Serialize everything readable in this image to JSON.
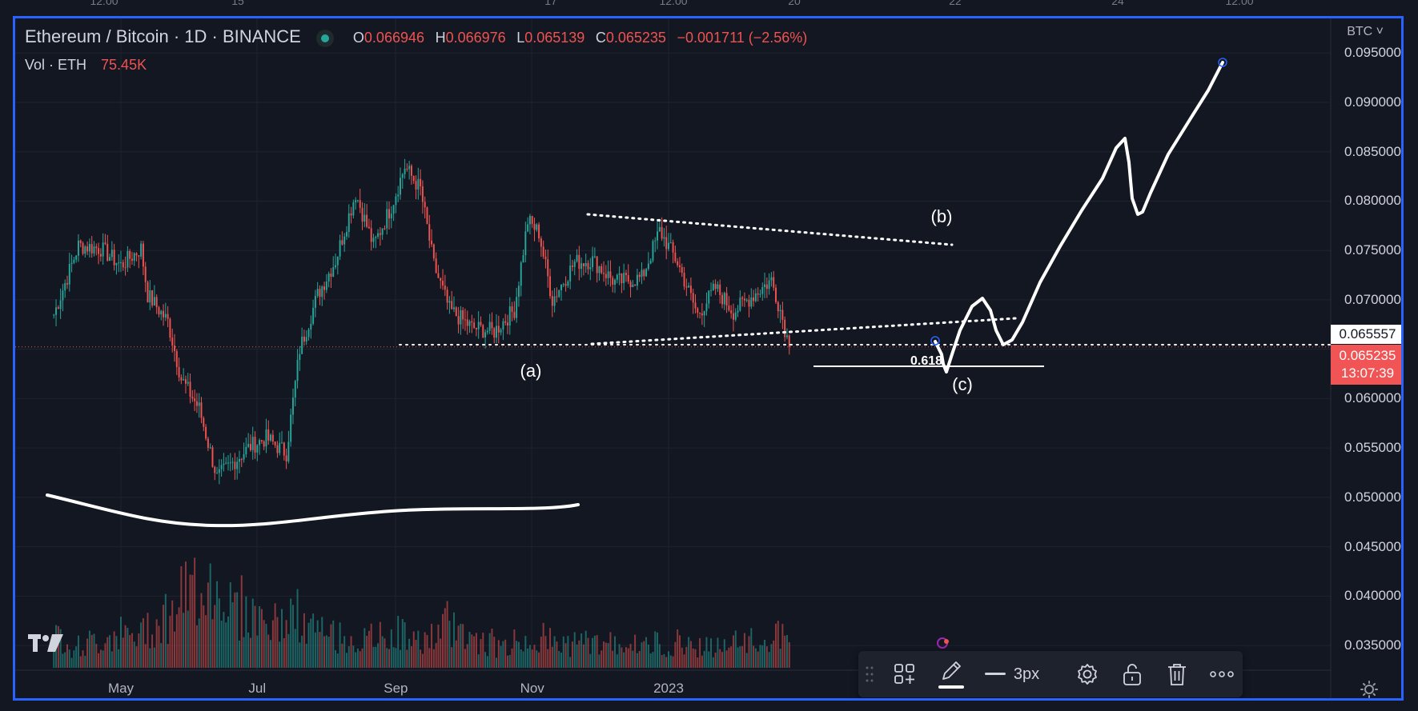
{
  "top_axis_labels": [
    "12:00",
    "15",
    "17",
    "12:00",
    "20",
    "22",
    "24",
    "12:00"
  ],
  "legend": {
    "symbol": "Ethereum / Bitcoin · 1D · BINANCE",
    "open_key": "O",
    "open": "0.066946",
    "high_key": "H",
    "high": "0.066976",
    "low_key": "L",
    "low": "0.065139",
    "close_key": "C",
    "close": "0.065235",
    "change": "−0.001711 (−2.56%)",
    "volume_label": "Vol · ETH",
    "volume_value": "75.45K"
  },
  "currency_button": "BTC",
  "colors": {
    "up": "#26a69a",
    "down": "#ef5350",
    "background": "#131722",
    "frame": "#2962ff",
    "annotation": "#ffffff"
  },
  "chart_data": {
    "type": "candlestick",
    "title": "",
    "x_ticks": [
      "May",
      "Jul",
      "Sep",
      "Nov",
      "2023"
    ],
    "y_ticks": [
      "0.095000",
      "0.090000",
      "0.085000",
      "0.080000",
      "0.075000",
      "0.070000",
      "0.065557",
      "0.060000",
      "0.055000",
      "0.050000",
      "0.045000",
      "0.040000",
      "0.035000"
    ],
    "ylim": [
      0.0325,
      0.0985
    ],
    "price_prev": "0.065557",
    "price_last": "0.065235",
    "countdown": "13:07:39",
    "price_path": [
      [
        "2022-04-01",
        0.0685
      ],
      [
        "2022-04-12",
        0.0755
      ],
      [
        "2022-04-22",
        0.0752
      ],
      [
        "2022-05-01",
        0.0735
      ],
      [
        "2022-05-10",
        0.0752
      ],
      [
        "2022-05-13",
        0.0705
      ],
      [
        "2022-05-22",
        0.0678
      ],
      [
        "2022-05-28",
        0.062
      ],
      [
        "2022-06-05",
        0.059
      ],
      [
        "2022-06-13",
        0.052
      ],
      [
        "2022-06-20",
        0.0535
      ],
      [
        "2022-06-28",
        0.0552
      ],
      [
        "2022-07-05",
        0.056
      ],
      [
        "2022-07-14",
        0.0545
      ],
      [
        "2022-07-20",
        0.065
      ],
      [
        "2022-07-28",
        0.0705
      ],
      [
        "2022-08-05",
        0.074
      ],
      [
        "2022-08-14",
        0.0808
      ],
      [
        "2022-08-22",
        0.0755
      ],
      [
        "2022-08-30",
        0.0795
      ],
      [
        "2022-09-05",
        0.0835
      ],
      [
        "2022-09-12",
        0.0812
      ],
      [
        "2022-09-18",
        0.0735
      ],
      [
        "2022-09-25",
        0.069
      ],
      [
        "2022-10-05",
        0.0672
      ],
      [
        "2022-10-15",
        0.0668
      ],
      [
        "2022-10-24",
        0.069
      ],
      [
        "2022-10-30",
        0.078
      ],
      [
        "2022-11-04",
        0.0768
      ],
      [
        "2022-11-10",
        0.07
      ],
      [
        "2022-11-20",
        0.0738
      ],
      [
        "2022-11-28",
        0.074
      ],
      [
        "2022-12-08",
        0.0718
      ],
      [
        "2022-12-20",
        0.0722
      ],
      [
        "2022-12-28",
        0.077
      ],
      [
        "2023-01-05",
        0.0738
      ],
      [
        "2023-01-14",
        0.0685
      ],
      [
        "2023-01-22",
        0.0712
      ],
      [
        "2023-01-30",
        0.0688
      ],
      [
        "2023-02-08",
        0.0705
      ],
      [
        "2023-02-16",
        0.072
      ],
      [
        "2023-02-20",
        0.069
      ],
      [
        "2023-02-24",
        0.06524
      ]
    ],
    "volume_series": [
      0.35,
      0.25,
      0.3,
      0.4,
      0.35,
      0.5,
      0.6,
      0.8,
      1.0,
      0.9,
      0.7,
      0.6,
      0.5,
      0.6,
      0.45,
      0.4,
      0.35,
      0.3,
      0.35,
      0.4,
      0.3,
      0.35,
      0.5,
      0.4,
      0.3,
      0.25,
      0.3,
      0.35,
      0.3,
      0.28,
      0.3,
      0.27,
      0.3,
      0.25,
      0.28,
      0.3,
      0.26,
      0.24,
      0.28,
      0.3,
      0.32,
      0.36
    ]
  },
  "annotations": {
    "wave_a": "(a)",
    "wave_b": "(b)",
    "wave_c": "(c)",
    "fib_level": "0.618"
  },
  "toolbar": {
    "thickness": "3px"
  },
  "icons": {
    "logo": "tradingview-logo-icon",
    "settings": "gear-icon",
    "lock": "unlock-icon",
    "delete": "trash-icon",
    "more": "more-icon",
    "theme": "sun-icon"
  }
}
